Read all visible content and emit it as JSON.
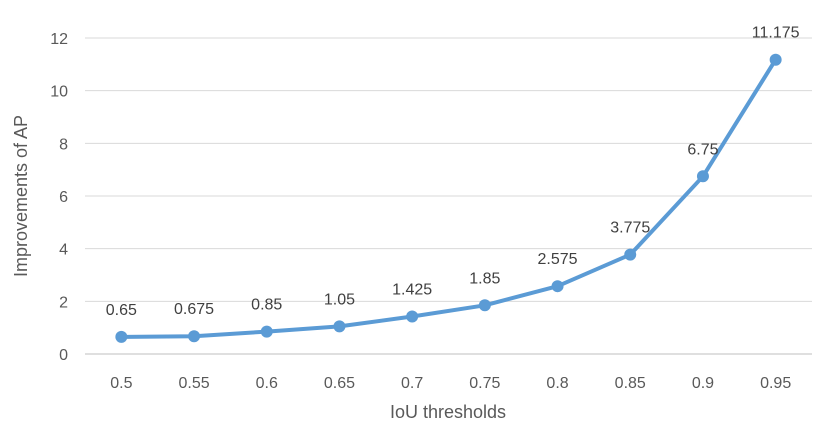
{
  "chart_data": {
    "type": "line",
    "title": "",
    "xlabel": "IoU thresholds",
    "ylabel": "Improvements of AP",
    "x": [
      "0.5",
      "0.55",
      "0.6",
      "0.65",
      "0.7",
      "0.75",
      "0.8",
      "0.85",
      "0.9",
      "0.95"
    ],
    "series": [
      {
        "values": [
          0.65,
          0.675,
          0.85,
          1.05,
          1.425,
          1.85,
          2.575,
          3.775,
          6.75,
          11.175
        ],
        "labels": [
          "0.65",
          "0.675",
          "0.85",
          "1.05",
          "1.425",
          "1.85",
          "2.575",
          "3.775",
          "6.75",
          "11.175"
        ],
        "color": "#5B9BD5"
      }
    ],
    "ylim": [
      0,
      12
    ],
    "yticks": [
      "0",
      "2",
      "4",
      "6",
      "8",
      "10",
      "12"
    ],
    "grid": true,
    "legend": "none"
  }
}
